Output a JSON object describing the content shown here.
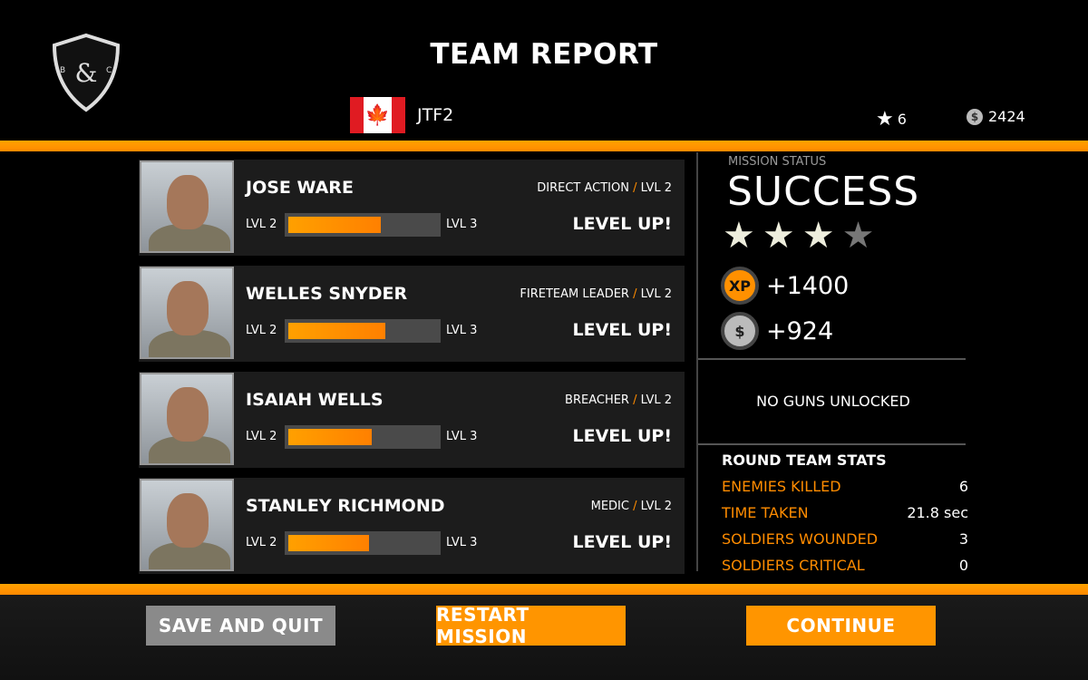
{
  "header": {
    "title": "TEAM REPORT",
    "team_name": "JTF2",
    "flag": "canada-flag",
    "logo_text": "B C",
    "stars": "6",
    "money": "2424"
  },
  "soldiers": [
    {
      "name": "JOSE WARE",
      "role": "DIRECT ACTION",
      "role_level": "LVL 2",
      "from_level": "LVL 2",
      "to_level": "LVL 3",
      "progress": 0.62,
      "status": "LEVEL UP!"
    },
    {
      "name": "WELLES SNYDER",
      "role": "FIRETEAM LEADER",
      "role_level": "LVL 2",
      "from_level": "LVL 2",
      "to_level": "LVL 3",
      "progress": 0.65,
      "status": "LEVEL UP!"
    },
    {
      "name": "ISAIAH WELLS",
      "role": "BREACHER",
      "role_level": "LVL 2",
      "from_level": "LVL 2",
      "to_level": "LVL 3",
      "progress": 0.56,
      "status": "LEVEL UP!"
    },
    {
      "name": "STANLEY RICHMOND",
      "role": "MEDIC",
      "role_level": "LVL 2",
      "from_level": "LVL 2",
      "to_level": "LVL 3",
      "progress": 0.54,
      "status": "LEVEL UP!"
    }
  ],
  "mission": {
    "label": "MISSION STATUS",
    "status": "SUCCESS",
    "stars_earned": 3,
    "stars_total": 4,
    "xp_icon": "XP",
    "xp": "+1400",
    "money_icon": "$",
    "money": "+924",
    "guns": "NO GUNS UNLOCKED"
  },
  "round_stats": {
    "title": "ROUND TEAM STATS",
    "rows": [
      {
        "label": "ENEMIES KILLED",
        "value": "6"
      },
      {
        "label": "TIME TAKEN",
        "value": "21.8 sec"
      },
      {
        "label": "SOLDIERS WOUNDED",
        "value": "3"
      },
      {
        "label": "SOLDIERS CRITICAL",
        "value": "0"
      }
    ]
  },
  "buttons": {
    "save_quit": "SAVE AND QUIT",
    "restart": "RESTART MISSION",
    "continue": "CONTINUE"
  },
  "colors": {
    "accent": "#ff8c00",
    "button_gray": "#8a8a8a",
    "star_on": "#eeeedd",
    "star_off": "#777777"
  }
}
